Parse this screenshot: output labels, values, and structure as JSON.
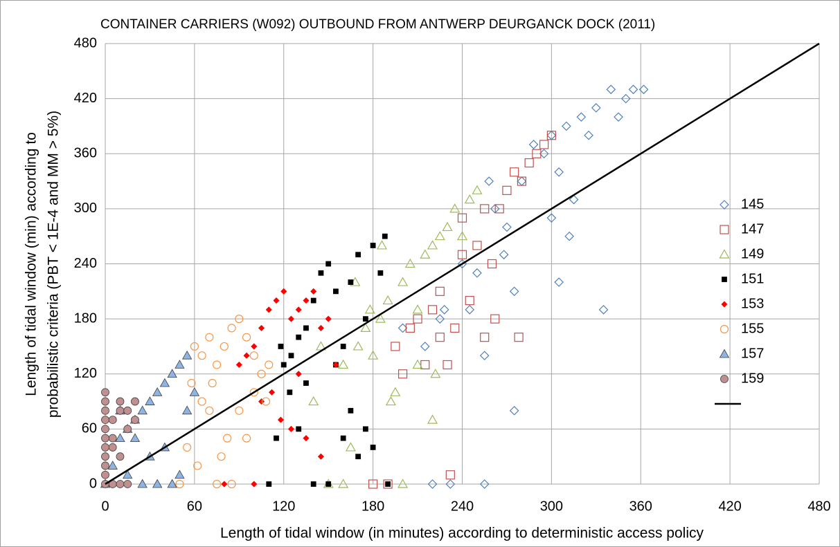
{
  "chart_data": {
    "type": "scatter",
    "title": "CONTAINER CARRIERS (W092) OUTBOUND FROM ANTWERP DEURGANCK DOCK (2011)",
    "x_label": "Length of tidal window (in minutes) according to deterministic access policy",
    "y_label": [
      "Length of tidal window (min) according to",
      "probabilistic criteria (PBT < 1E-4 and MM > 5%)"
    ],
    "xlim": [
      0,
      480
    ],
    "ylim": [
      0,
      480
    ],
    "xticks": [
      0,
      60,
      120,
      180,
      240,
      300,
      360,
      420,
      480
    ],
    "yticks": [
      0,
      60,
      120,
      180,
      240,
      300,
      360,
      420,
      480
    ],
    "grid": true,
    "legend": "right",
    "series": [
      {
        "name": "145",
        "color": "#4f81bd",
        "marker": "diamond",
        "filled": false,
        "x": [
          200,
          215,
          225,
          240,
          250,
          255,
          262,
          270,
          275,
          280,
          288,
          295,
          300,
          305,
          310,
          315,
          320,
          325,
          330,
          335,
          340,
          345,
          350,
          355,
          362,
          245,
          258,
          300,
          305,
          312,
          220,
          232,
          255,
          275,
          228,
          268
        ],
        "values": [
          170,
          150,
          180,
          240,
          230,
          140,
          300,
          280,
          210,
          330,
          370,
          360,
          380,
          340,
          390,
          310,
          400,
          380,
          410,
          190,
          430,
          400,
          420,
          430,
          430,
          190,
          330,
          290,
          220,
          270,
          0,
          0,
          0,
          80,
          190,
          250
        ]
      },
      {
        "name": "147",
        "color": "#c0504d",
        "marker": "square",
        "filled": false,
        "x": [
          180,
          190,
          195,
          200,
          205,
          210,
          215,
          220,
          225,
          230,
          232,
          235,
          240,
          245,
          250,
          255,
          260,
          262,
          265,
          270,
          275,
          278,
          280,
          285,
          290,
          295,
          300,
          225,
          240,
          255
        ],
        "values": [
          0,
          0,
          150,
          120,
          170,
          180,
          130,
          190,
          160,
          130,
          10,
          170,
          250,
          200,
          260,
          160,
          240,
          180,
          300,
          320,
          340,
          160,
          330,
          350,
          360,
          370,
          380,
          210,
          290,
          300
        ]
      },
      {
        "name": "149",
        "color": "#9bbb59",
        "marker": "triangle",
        "filled": false,
        "x": [
          145,
          150,
          160,
          165,
          170,
          175,
          180,
          185,
          190,
          195,
          200,
          205,
          210,
          215,
          220,
          225,
          230,
          235,
          240,
          245,
          250,
          222,
          220,
          192,
          178,
          168,
          210,
          186,
          200,
          160,
          140
        ],
        "values": [
          150,
          0,
          130,
          40,
          150,
          170,
          140,
          180,
          200,
          100,
          220,
          240,
          190,
          250,
          260,
          270,
          280,
          300,
          270,
          310,
          320,
          120,
          70,
          90,
          190,
          220,
          130,
          260,
          0,
          0,
          90
        ]
      },
      {
        "name": "151",
        "color": "#000000",
        "marker": "square",
        "filled": true,
        "x": [
          110,
          115,
          118,
          120,
          125,
          130,
          135,
          140,
          145,
          150,
          155,
          160,
          165,
          170,
          175,
          180,
          185,
          188,
          190,
          150,
          140,
          135,
          160,
          170,
          180,
          130,
          124,
          175,
          165,
          155
        ],
        "values": [
          0,
          50,
          150,
          130,
          140,
          160,
          170,
          200,
          230,
          240,
          210,
          150,
          220,
          250,
          180,
          260,
          230,
          270,
          0,
          0,
          0,
          110,
          50,
          30,
          40,
          60,
          100,
          60,
          80,
          130
        ]
      },
      {
        "name": "153",
        "color": "#ff0000",
        "marker": "diamond",
        "filled": true,
        "x": [
          80,
          90,
          95,
          100,
          105,
          110,
          115,
          120,
          125,
          130,
          135,
          140,
          145,
          150,
          112,
          118,
          105,
          125,
          135,
          145,
          100,
          130,
          155
        ],
        "values": [
          0,
          130,
          140,
          150,
          170,
          190,
          200,
          210,
          180,
          190,
          200,
          210,
          170,
          180,
          100,
          70,
          90,
          60,
          50,
          30,
          0,
          120,
          130
        ]
      },
      {
        "name": "155",
        "color": "#f79646",
        "marker": "circle",
        "filled": false,
        "x": [
          50,
          55,
          60,
          65,
          70,
          75,
          80,
          85,
          90,
          95,
          100,
          105,
          110,
          65,
          70,
          75,
          82,
          90,
          95,
          100,
          62,
          78,
          85,
          108,
          58,
          72
        ],
        "values": [
          0,
          40,
          150,
          140,
          160,
          130,
          150,
          170,
          180,
          160,
          140,
          120,
          130,
          90,
          80,
          0,
          50,
          80,
          50,
          100,
          20,
          30,
          0,
          90,
          110,
          110
        ]
      },
      {
        "name": "157",
        "color": "#8eb4e3",
        "marker": "triangle",
        "filled": true,
        "x": [
          0,
          5,
          10,
          15,
          20,
          25,
          30,
          35,
          40,
          45,
          50,
          55,
          60,
          25,
          35,
          45,
          50,
          40,
          30,
          15,
          55,
          20,
          10
        ],
        "values": [
          0,
          20,
          50,
          60,
          70,
          80,
          90,
          100,
          110,
          120,
          130,
          140,
          100,
          0,
          0,
          0,
          10,
          40,
          30,
          10,
          80,
          50,
          80
        ]
      },
      {
        "name": "159",
        "color": "#c09090",
        "marker": "circle",
        "filled": true,
        "x": [
          0,
          0,
          0,
          0,
          0,
          0,
          0,
          0,
          0,
          0,
          0,
          5,
          5,
          5,
          10,
          10,
          15,
          15,
          20,
          10,
          15,
          20,
          5,
          10
        ],
        "values": [
          0,
          10,
          20,
          30,
          40,
          50,
          60,
          70,
          80,
          90,
          100,
          0,
          40,
          70,
          80,
          90,
          80,
          60,
          70,
          0,
          0,
          90,
          50,
          30
        ]
      }
    ],
    "reference_line": {
      "color": "#000000",
      "x": [
        0,
        480
      ],
      "values": [
        0,
        480
      ]
    }
  }
}
